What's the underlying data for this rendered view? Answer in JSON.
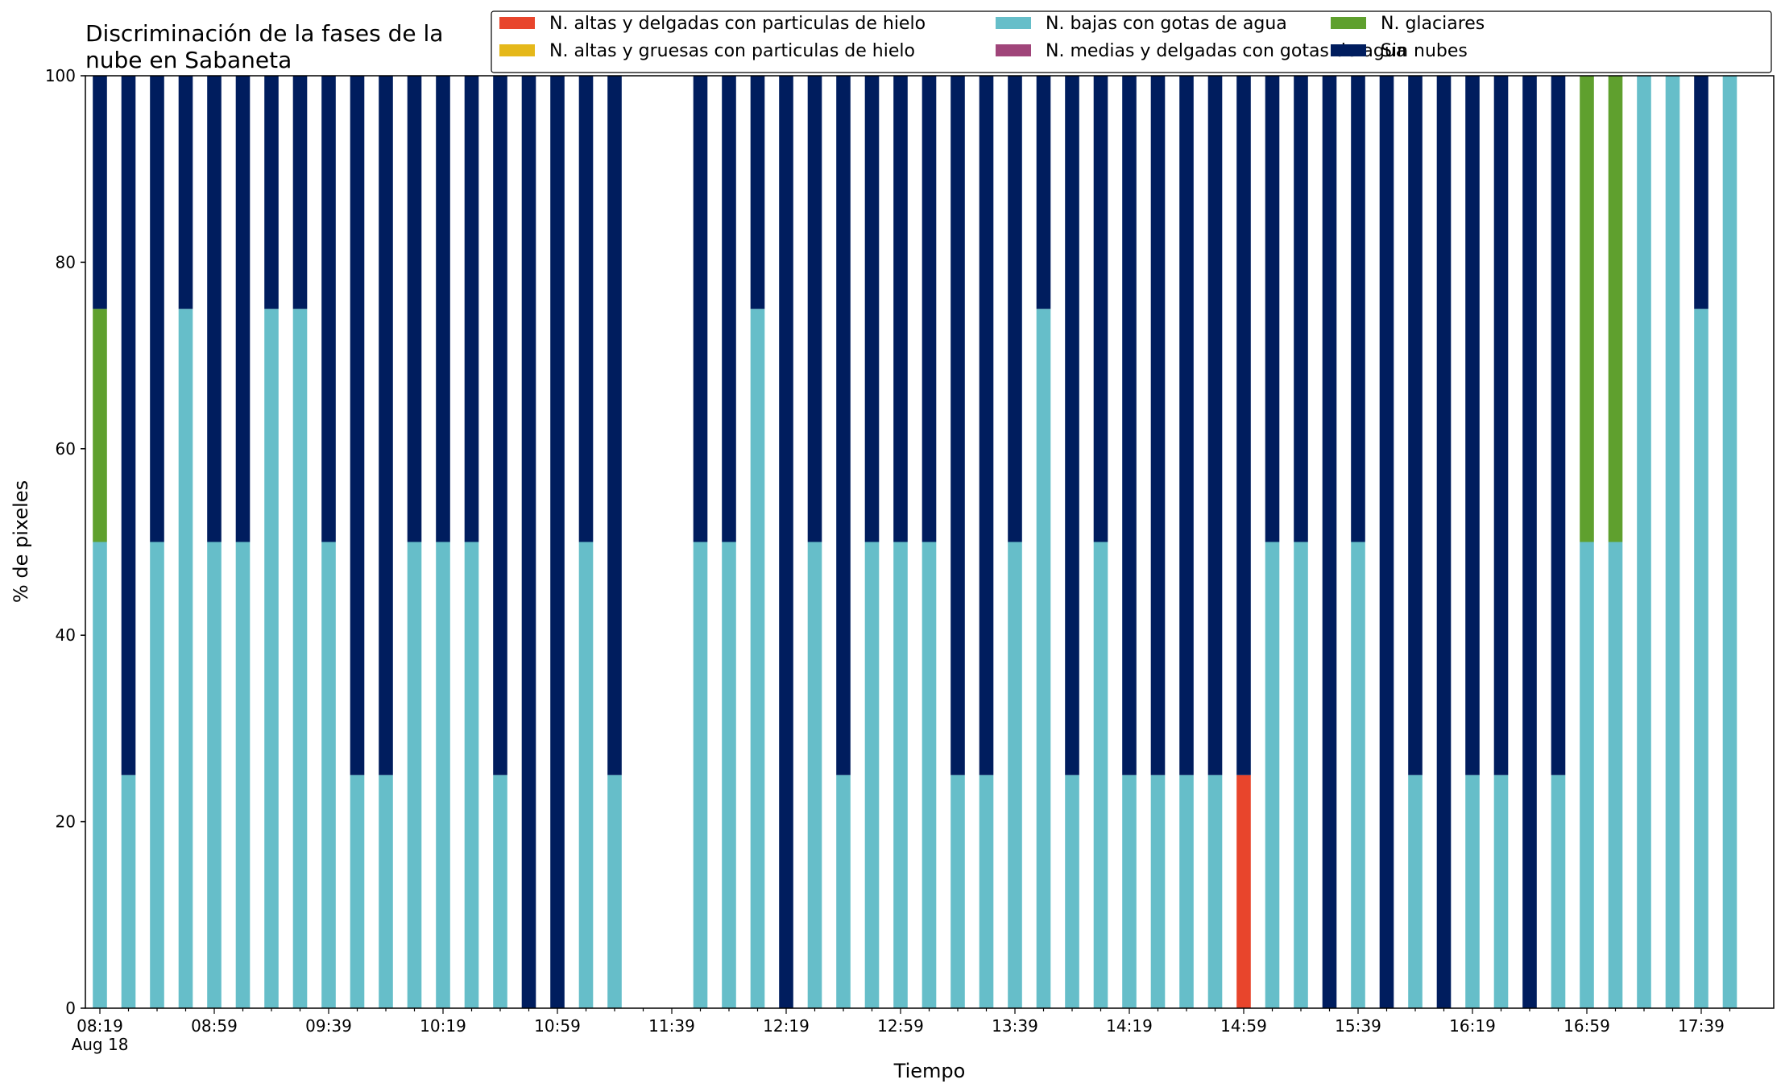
{
  "chart_data": {
    "type": "bar",
    "stacked": true,
    "title_lines": [
      "Discriminación de la fases de la",
      "nube en Sabaneta"
    ],
    "xlabel": "Tiempo",
    "ylabel": "% de pixeles",
    "ylim": [
      0,
      100
    ],
    "yticks": [
      0,
      20,
      40,
      60,
      80,
      100
    ],
    "grid": false,
    "legend_position": "top-right",
    "legend_columns": 3,
    "x_start": "08:19",
    "x_step_minutes": 10,
    "x_tick_labels": [
      "08:19",
      "08:59",
      "09:39",
      "10:19",
      "10:59",
      "11:39",
      "12:19",
      "12:59",
      "13:39",
      "14:19",
      "14:59",
      "15:39",
      "16:19",
      "16:59",
      "17:39"
    ],
    "x_date_label": "Aug 18",
    "categories": [
      "08:19",
      "08:29",
      "08:39",
      "08:49",
      "08:59",
      "09:09",
      "09:19",
      "09:29",
      "09:39",
      "09:49",
      "09:59",
      "10:09",
      "10:19",
      "10:29",
      "10:39",
      "10:49",
      "10:59",
      "11:09",
      "11:19",
      "11:29",
      "11:39",
      "11:49",
      "11:59",
      "12:09",
      "12:19",
      "12:29",
      "12:39",
      "12:49",
      "12:59",
      "13:09",
      "13:19",
      "13:29",
      "13:39",
      "13:49",
      "13:59",
      "14:09",
      "14:19",
      "14:29",
      "14:39",
      "14:49",
      "14:59",
      "15:09",
      "15:19",
      "15:29",
      "15:39",
      "15:49",
      "15:59",
      "16:09",
      "16:19",
      "16:29",
      "16:39",
      "16:49",
      "16:59",
      "17:09",
      "17:19",
      "17:29",
      "17:39",
      "17:49"
    ],
    "series": [
      {
        "name": "N. altas y delgadas con particulas de hielo",
        "color": "#e8452c",
        "values": [
          0,
          0,
          0,
          0,
          0,
          0,
          0,
          0,
          0,
          0,
          0,
          0,
          0,
          0,
          0,
          0,
          0,
          0,
          0,
          0,
          0,
          0,
          0,
          0,
          0,
          0,
          0,
          0,
          0,
          0,
          0,
          0,
          0,
          0,
          0,
          0,
          0,
          0,
          0,
          0,
          25,
          0,
          0,
          0,
          0,
          0,
          0,
          0,
          0,
          0,
          0,
          0,
          0,
          0,
          0,
          0,
          0,
          0
        ]
      },
      {
        "name": "N. altas y gruesas con particulas de hielo",
        "color": "#e5b81a",
        "values": [
          0,
          0,
          0,
          0,
          0,
          0,
          0,
          0,
          0,
          0,
          0,
          0,
          0,
          0,
          0,
          0,
          0,
          0,
          0,
          0,
          0,
          0,
          0,
          0,
          0,
          0,
          0,
          0,
          0,
          0,
          0,
          0,
          0,
          0,
          0,
          0,
          0,
          0,
          0,
          0,
          0,
          0,
          0,
          0,
          0,
          0,
          0,
          0,
          0,
          0,
          0,
          0,
          0,
          0,
          0,
          0,
          0,
          0
        ]
      },
      {
        "name": "N. bajas con gotas de agua",
        "color": "#66bec9",
        "values": [
          50,
          25,
          50,
          75,
          50,
          50,
          75,
          75,
          50,
          25,
          25,
          50,
          50,
          50,
          25,
          0,
          0,
          50,
          25,
          0,
          0,
          50,
          50,
          75,
          0,
          50,
          25,
          50,
          50,
          50,
          25,
          25,
          50,
          75,
          25,
          50,
          25,
          25,
          25,
          25,
          0,
          50,
          50,
          0,
          50,
          0,
          25,
          0,
          25,
          25,
          0,
          25,
          50,
          50,
          100,
          100,
          75,
          100
        ]
      },
      {
        "name": "N. medias y delgadas con gotas de agua",
        "color": "#a0457a",
        "values": [
          0,
          0,
          0,
          0,
          0,
          0,
          0,
          0,
          0,
          0,
          0,
          0,
          0,
          0,
          0,
          0,
          0,
          0,
          0,
          0,
          0,
          0,
          0,
          0,
          0,
          0,
          0,
          0,
          0,
          0,
          0,
          0,
          0,
          0,
          0,
          0,
          0,
          0,
          0,
          0,
          0,
          0,
          0,
          0,
          0,
          0,
          0,
          0,
          0,
          0,
          0,
          0,
          0,
          0,
          0,
          0,
          0,
          0
        ]
      },
      {
        "name": "N. glaciares",
        "color": "#5fa02e",
        "values": [
          25,
          0,
          0,
          0,
          0,
          0,
          0,
          0,
          0,
          0,
          0,
          0,
          0,
          0,
          0,
          0,
          0,
          0,
          0,
          0,
          0,
          0,
          0,
          0,
          0,
          0,
          0,
          0,
          0,
          0,
          0,
          0,
          0,
          0,
          0,
          0,
          0,
          0,
          0,
          0,
          0,
          0,
          0,
          0,
          0,
          0,
          0,
          0,
          0,
          0,
          0,
          0,
          50,
          50,
          0,
          0,
          0,
          0
        ]
      },
      {
        "name": "Sin nubes",
        "color": "#001d5e",
        "values": [
          25,
          75,
          50,
          25,
          50,
          50,
          25,
          25,
          50,
          75,
          75,
          50,
          50,
          50,
          75,
          100,
          100,
          50,
          75,
          0,
          0,
          50,
          50,
          25,
          100,
          50,
          75,
          50,
          50,
          50,
          75,
          75,
          50,
          25,
          75,
          50,
          75,
          75,
          75,
          75,
          75,
          50,
          50,
          100,
          50,
          100,
          75,
          100,
          75,
          75,
          100,
          75,
          0,
          0,
          0,
          0,
          25,
          0
        ]
      }
    ]
  }
}
